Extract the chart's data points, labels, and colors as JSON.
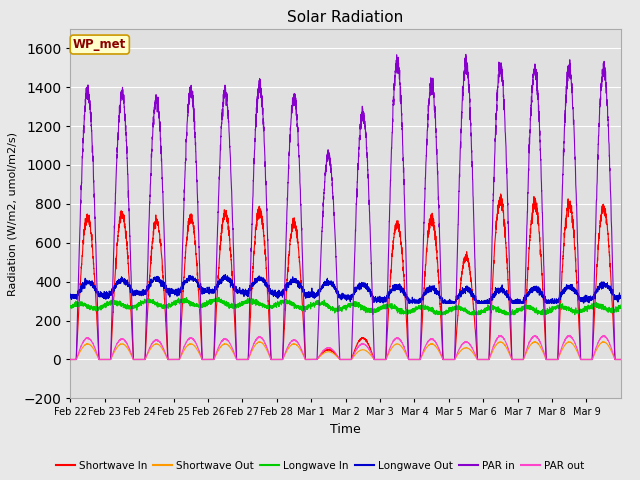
{
  "title": "Solar Radiation",
  "xlabel": "Time",
  "ylabel": "Radiation (W/m2, umol/m2/s)",
  "ylim": [
    -200,
    1700
  ],
  "yticks": [
    -200,
    0,
    200,
    400,
    600,
    800,
    1000,
    1200,
    1400,
    1600
  ],
  "bg_color": "#e8e8e8",
  "plot_bg_color": "#e0e0e0",
  "grid_color": "#ffffff",
  "annotation_text": "WP_met",
  "annotation_bg": "#ffffcc",
  "annotation_border": "#cc9900",
  "annotation_text_color": "#8b0000",
  "series_colors": {
    "shortwave_in": "#ff0000",
    "shortwave_out": "#ff9900",
    "longwave_in": "#00cc00",
    "longwave_out": "#0000cc",
    "par_in": "#8800cc",
    "par_out": "#ff44cc"
  },
  "n_days": 16,
  "points_per_day": 288,
  "sw_in_peaks": [
    730,
    750,
    710,
    730,
    750,
    770,
    700,
    50,
    110,
    700,
    730,
    530,
    820,
    800,
    800,
    780
  ],
  "par_in_peaks": [
    1380,
    1360,
    1340,
    1380,
    1370,
    1400,
    1350,
    1050,
    1260,
    1530,
    1420,
    1520,
    1500,
    1490,
    1490,
    1490
  ],
  "sw_out_peaks": [
    80,
    80,
    80,
    80,
    80,
    90,
    80,
    40,
    50,
    80,
    80,
    60,
    90,
    90,
    90,
    90
  ],
  "par_out_peaks": [
    110,
    105,
    100,
    110,
    105,
    115,
    100,
    60,
    80,
    110,
    105,
    90,
    120,
    120,
    120,
    120
  ],
  "tick_labels": [
    "Feb 22",
    "Feb 23",
    "Feb 24",
    "Feb 25",
    "Feb 26",
    "Feb 27",
    "Feb 28",
    "Mar 1",
    "Mar 2",
    "Mar 3",
    "Mar 4",
    "Mar 5",
    "Mar 6",
    "Mar 7",
    "Mar 8",
    "Mar 9"
  ],
  "legend_labels": [
    "Shortwave In",
    "Shortwave Out",
    "Longwave In",
    "Longwave Out",
    "PAR in",
    "PAR out"
  ]
}
